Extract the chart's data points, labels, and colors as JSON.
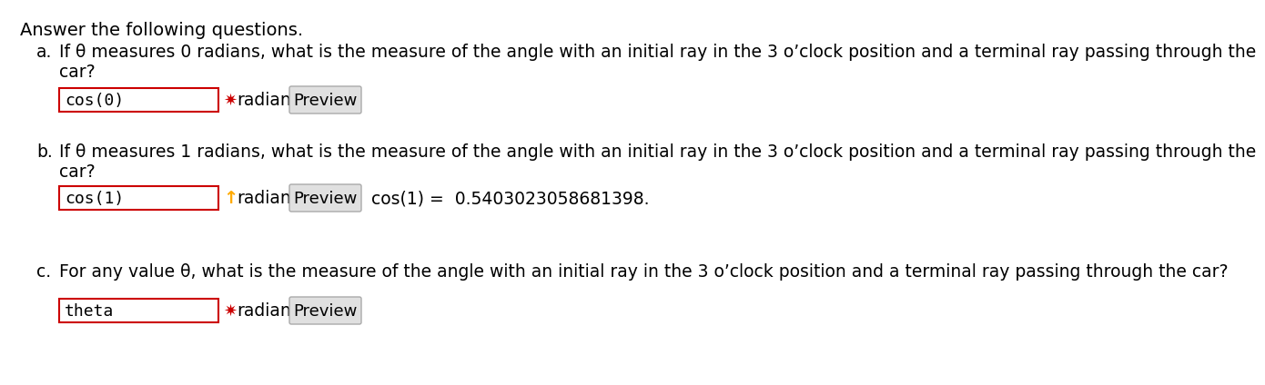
{
  "title": "Answer the following questions.",
  "bg_color": "#ffffff",
  "text_color": "#000000",
  "part_a": {
    "label": "a.",
    "question_line1": "If θ measures 0 radians, what is the measure of the angle with an initial ray in the 3 o’clock position and a terminal ray passing through the",
    "question_line2": "car?",
    "input_text": "cos(0)",
    "marker": "✷",
    "marker_color": "#cc0000",
    "preview_text": "Preview"
  },
  "part_b": {
    "label": "b.",
    "question_line1": "If θ measures 1 radians, what is the measure of the angle with an initial ray in the 3 o’clock position and a terminal ray passing through the",
    "question_line2": "car?",
    "input_text": "cos(1)",
    "marker": "↑",
    "marker_color": "#ffaa00",
    "preview_text": "Preview",
    "extra_text": "cos(1) =  0.5403023058681398."
  },
  "part_c": {
    "label": "c.",
    "question_line1": "For any value θ, what is the measure of the angle with an initial ray in the 3 o’clock position and a terminal ray passing through the car?",
    "input_text": "theta",
    "marker": "✷",
    "marker_color": "#cc0000",
    "preview_text": "Preview"
  }
}
